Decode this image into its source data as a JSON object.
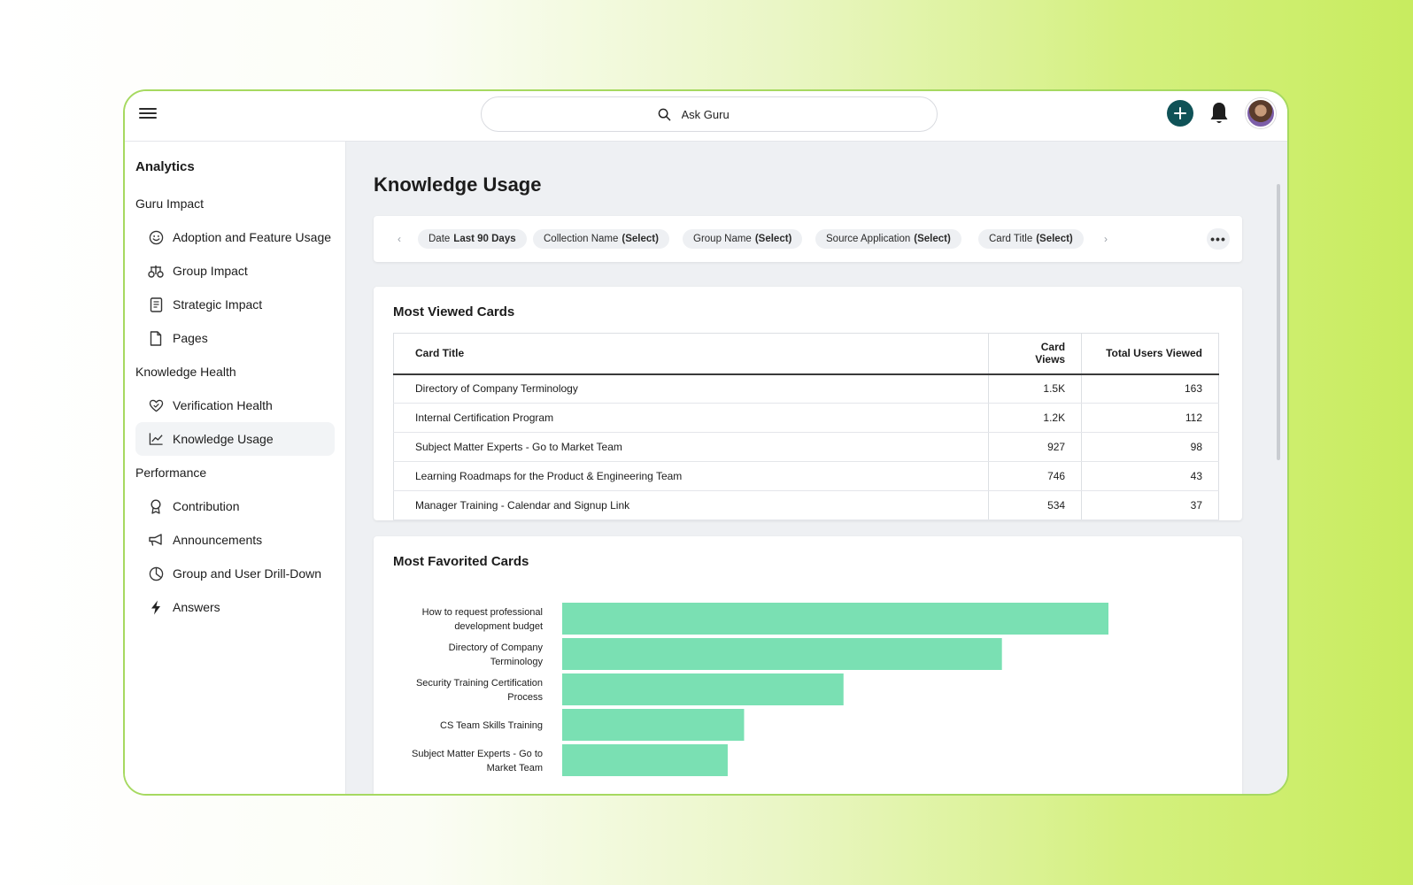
{
  "header": {
    "search_placeholder": "Ask Guru"
  },
  "sidebar": {
    "title": "Analytics",
    "sections": [
      {
        "label": "Guru Impact",
        "items": [
          {
            "label": "Adoption and Feature Usage",
            "icon": "smiley-icon"
          },
          {
            "label": "Group Impact",
            "icon": "scale-icon"
          },
          {
            "label": "Strategic Impact",
            "icon": "document-icon"
          },
          {
            "label": "Pages",
            "icon": "page-icon"
          }
        ]
      },
      {
        "label": "Knowledge Health",
        "items": [
          {
            "label": "Verification Health",
            "icon": "heart-check-icon"
          },
          {
            "label": "Knowledge Usage",
            "icon": "line-chart-icon",
            "active": true
          }
        ]
      },
      {
        "label": "Performance",
        "items": [
          {
            "label": "Contribution",
            "icon": "ribbon-icon"
          },
          {
            "label": "Announcements",
            "icon": "megaphone-icon"
          },
          {
            "label": "Group and User Drill-Down",
            "icon": "pie-icon"
          },
          {
            "label": "Answers",
            "icon": "bolt-icon"
          }
        ]
      }
    ]
  },
  "main": {
    "title": "Knowledge Usage",
    "filters": [
      {
        "name": "Date",
        "value": "Last 90 Days"
      },
      {
        "name": "Collection Name",
        "value": "(Select)"
      },
      {
        "name": "Group Name",
        "value": "(Select)"
      },
      {
        "name": "Source Application",
        "value": "(Select)"
      },
      {
        "name": "Card Title",
        "value": "(Select)"
      }
    ],
    "more_label": "•••",
    "prev_label": "‹",
    "next_label": "›",
    "most_viewed": {
      "title": "Most Viewed Cards",
      "columns": [
        "Card Title",
        "Card Views",
        "Total Users Viewed"
      ],
      "rows": [
        [
          "Directory of Company Terminology",
          "1.5K",
          "163"
        ],
        [
          "Internal Certification Program",
          "1.2K",
          "112"
        ],
        [
          "Subject Matter Experts - Go to Market Team",
          "927",
          "98"
        ],
        [
          "Learning Roadmaps for the Product & Engineering Team",
          "746",
          "43"
        ],
        [
          "Manager Training - Calendar and Signup Link",
          "534",
          "37"
        ]
      ]
    },
    "most_favorited": {
      "title": "Most Favorited Cards"
    }
  },
  "chart_data": {
    "type": "bar",
    "orientation": "horizontal",
    "categories": [
      [
        "How to request professional",
        "development budget"
      ],
      [
        "Directory of Company",
        "Terminology"
      ],
      [
        "Security Training Certification",
        "Process"
      ],
      [
        "CS Team Skills Training"
      ],
      [
        "Subject Matter Experts - Go to",
        "Market Team"
      ]
    ],
    "values": [
      100,
      80.5,
      51.5,
      33.3,
      30.3
    ],
    "bar_color": "#7ae0b3",
    "title": "Most Favorited Cards"
  }
}
